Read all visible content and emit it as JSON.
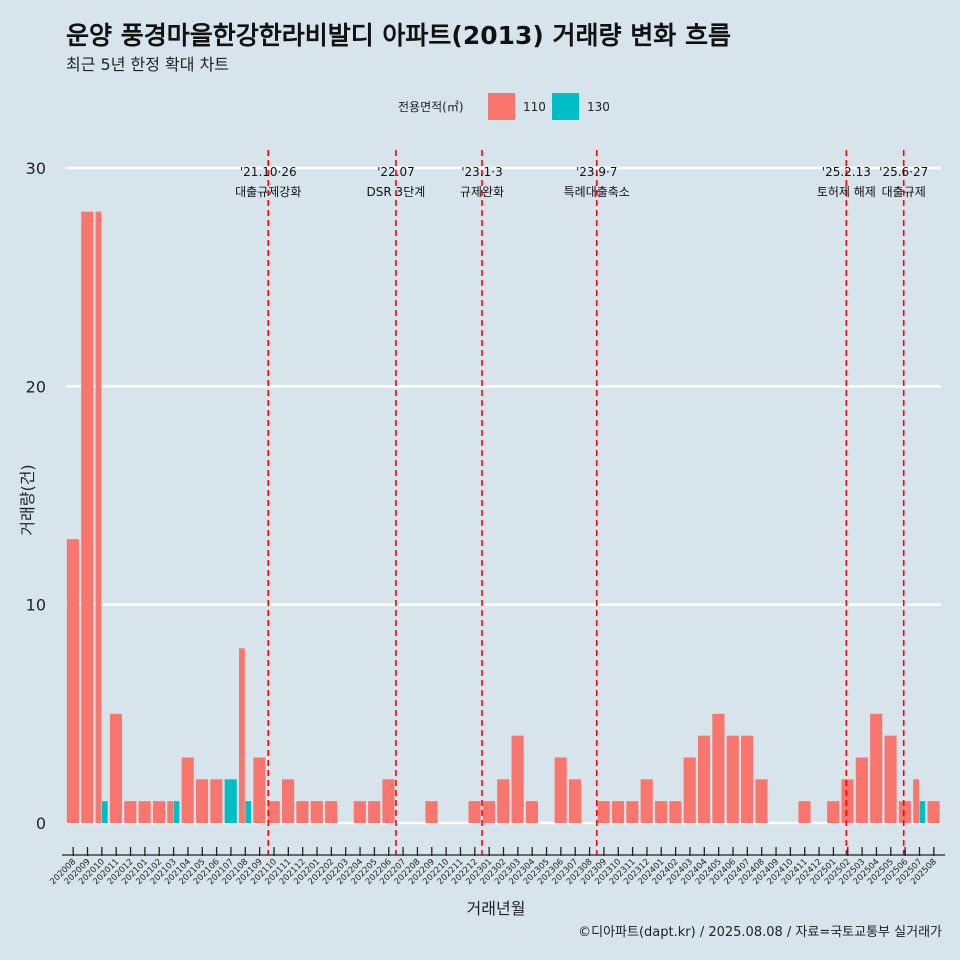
{
  "chart_data": {
    "type": "bar",
    "title": "운양 풍경마을한강한라비발디 아파트(2013) 거래량 변화 흐름",
    "subtitle": "최근 5년 한정 확대 차트",
    "xlabel": "거래년월",
    "ylabel": "거래량(건)",
    "legend_title": "전용면적(㎡)",
    "legend_position": "top",
    "caption": "©디아파트(dapt.kr) / 2025.08.08 / 자료=국토교통부 실거래가",
    "ylim": [
      0,
      30
    ],
    "yticks": [
      0,
      10,
      20,
      30
    ],
    "grid": true,
    "categories": [
      "202008",
      "202009",
      "202010",
      "202011",
      "202012",
      "202101",
      "202102",
      "202103",
      "202104",
      "202105",
      "202106",
      "202107",
      "202108",
      "202109",
      "202110",
      "202111",
      "202112",
      "202201",
      "202202",
      "202203",
      "202204",
      "202205",
      "202206",
      "202207",
      "202208",
      "202209",
      "202210",
      "202211",
      "202212",
      "202301",
      "202302",
      "202303",
      "202304",
      "202305",
      "202306",
      "202307",
      "202308",
      "202309",
      "202310",
      "202311",
      "202312",
      "202401",
      "202402",
      "202403",
      "202404",
      "202405",
      "202406",
      "202407",
      "202408",
      "202409",
      "202410",
      "202411",
      "202412",
      "202501",
      "202502",
      "202503",
      "202504",
      "202505",
      "202506",
      "202507",
      "202508"
    ],
    "series": [
      {
        "name": "110",
        "color": "#f8766d",
        "values": [
          13,
          28,
          28,
          5,
          1,
          1,
          1,
          1,
          3,
          2,
          2,
          0,
          8,
          3,
          1,
          2,
          1,
          1,
          1,
          0,
          1,
          1,
          2,
          0,
          0,
          1,
          0,
          0,
          1,
          1,
          2,
          4,
          1,
          0,
          3,
          2,
          0,
          1,
          1,
          1,
          2,
          1,
          1,
          3,
          4,
          5,
          4,
          4,
          2,
          0,
          0,
          1,
          0,
          1,
          2,
          3,
          5,
          4,
          1,
          2,
          1
        ]
      },
      {
        "name": "130",
        "color": "#00bfc4",
        "values": [
          0,
          0,
          1,
          0,
          0,
          0,
          0,
          1,
          0,
          0,
          0,
          2,
          1,
          0,
          0,
          0,
          0,
          0,
          0,
          0,
          0,
          0,
          0,
          0,
          0,
          0,
          0,
          0,
          0,
          0,
          0,
          0,
          0,
          0,
          0,
          0,
          0,
          0,
          0,
          0,
          0,
          0,
          0,
          0,
          0,
          0,
          0,
          0,
          0,
          0,
          0,
          0,
          0,
          0,
          0,
          0,
          0,
          0,
          0,
          1,
          0
        ]
      }
    ],
    "events": [
      {
        "date": "'21.10·26",
        "label": "대출규제강화",
        "x": 14.1
      },
      {
        "date": "'22.07",
        "label": "DSR 3단계",
        "x": 23.0
      },
      {
        "date": "'23.1·3",
        "label": "규제완화",
        "x": 29.0
      },
      {
        "date": "'23.9·7",
        "label": "특례대출축소",
        "x": 37.0
      },
      {
        "date": "'25.2.13",
        "label": "토허제 해제",
        "x": 54.4
      },
      {
        "date": "'25.6·27",
        "label": "대출규제",
        "x": 58.4
      }
    ],
    "event_line_color": "#ff0000",
    "background_color": "#d7e4ec",
    "gridline_color": "#ffffff"
  }
}
